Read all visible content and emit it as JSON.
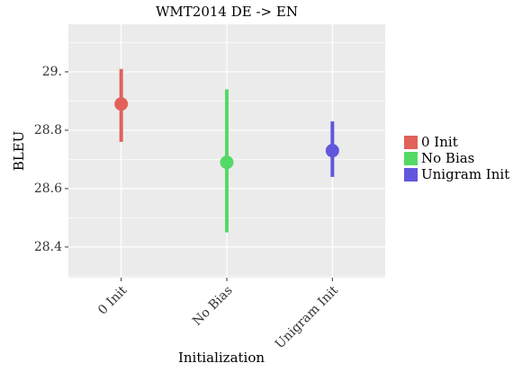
{
  "chart_data": {
    "type": "errorpoint",
    "title": "WMT2014 DE -> EN",
    "x_label": "Initialization",
    "y_label": "BLEU",
    "categories": [
      "0 Init",
      "No Bias",
      "Unigram Init"
    ],
    "values": [
      28.89,
      28.69,
      28.73
    ],
    "lower": [
      28.76,
      28.45,
      28.64
    ],
    "upper": [
      29.01,
      28.94,
      28.83
    ],
    "colors": [
      "#e0625a",
      "#55d965",
      "#6157dd"
    ],
    "ylim": [
      28.295,
      29.163
    ],
    "yticks": [
      {
        "value": 28.4,
        "label": "28.4"
      },
      {
        "value": 28.6,
        "label": "28.6"
      },
      {
        "value": 28.8,
        "label": "28.8"
      },
      {
        "value": 29,
        "label": "29."
      }
    ],
    "grid": true,
    "minor_grid": true,
    "legend": "right"
  }
}
